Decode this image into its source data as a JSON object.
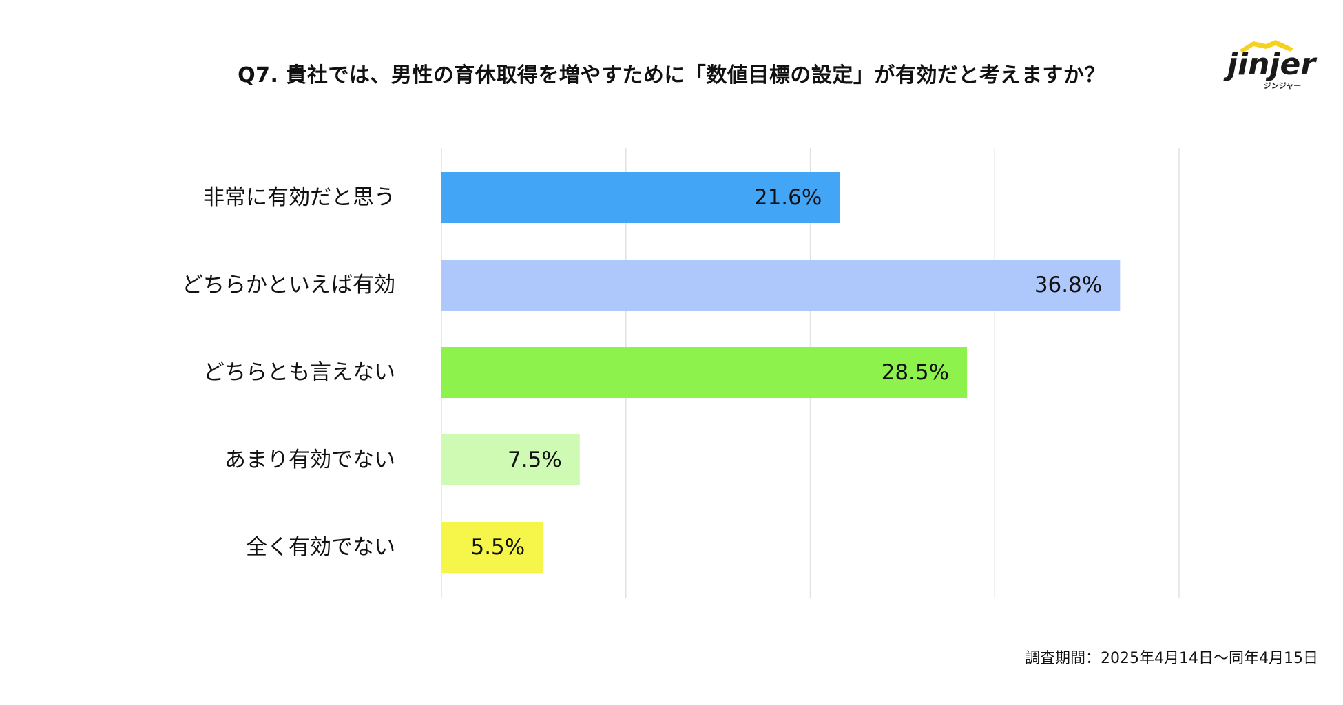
{
  "logo": {
    "wordmark": "jinjer",
    "kana": "ジンジャー"
  },
  "chart_data": {
    "type": "bar",
    "orientation": "horizontal",
    "title": "Q7. 貴社では、男性の育休取得を増やすために「数値目標の設定」が有効だと考えますか？",
    "categories": [
      "非常に有効だと思う",
      "どちらかといえば有効",
      "どちらとも言えない",
      "あまり有効でない",
      "全く有効でない"
    ],
    "values": [
      21.6,
      36.8,
      28.5,
      7.5,
      5.5
    ],
    "value_labels": [
      "21.6%",
      "36.8%",
      "28.5%",
      "7.5%",
      "5.5%"
    ],
    "colors": [
      "#42a5f5",
      "#afc8fc",
      "#8ef24c",
      "#cffab4",
      "#f5f54a"
    ],
    "xlim": [
      0,
      40
    ],
    "x_tick_step": 10,
    "grid": true,
    "unit": "%"
  },
  "footnote": "調査期間：2025年4月14日〜同年4月15日"
}
